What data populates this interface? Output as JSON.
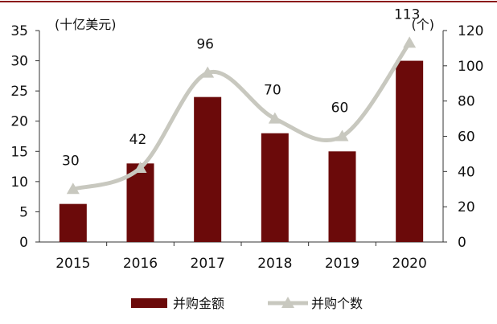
{
  "chart_data": {
    "type": "bar",
    "categories": [
      "2015",
      "2016",
      "2017",
      "2018",
      "2019",
      "2020"
    ],
    "series": [
      {
        "name": "并购金额",
        "type": "bar",
        "axis": "left",
        "values": [
          6.3,
          13,
          24,
          18,
          15,
          30
        ],
        "color": "#6b0a0a"
      },
      {
        "name": "并购个数",
        "type": "line",
        "axis": "right",
        "marker": "triangle",
        "values": [
          30,
          42,
          96,
          70,
          60,
          113
        ],
        "data_labels": [
          "30",
          "42",
          "96",
          "70",
          "60",
          "113"
        ],
        "color": "#c8c8bf"
      }
    ],
    "left_axis": {
      "unit_label": "(十亿美元)",
      "ylim": [
        0,
        35
      ],
      "ticks": [
        "0",
        "5",
        "10",
        "15",
        "20",
        "25",
        "30",
        "35"
      ]
    },
    "right_axis": {
      "unit_label": "(个)",
      "ylim": [
        0,
        120
      ],
      "ticks": [
        "0",
        "20",
        "40",
        "60",
        "80",
        "100",
        "120"
      ]
    },
    "grid": false,
    "legend_position": "bottom"
  },
  "colors": {
    "top_rule": "#8b1a1a",
    "axis": "#333333"
  }
}
